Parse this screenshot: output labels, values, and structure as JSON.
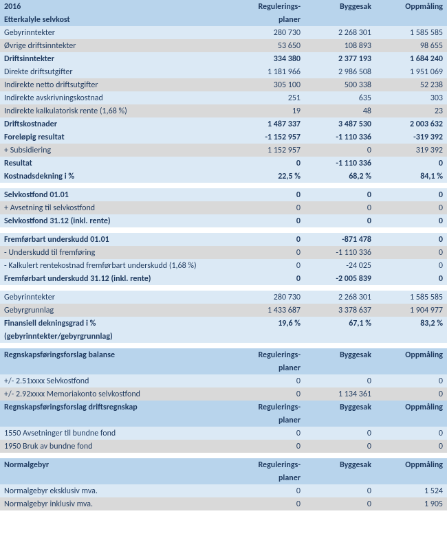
{
  "columns": {
    "c1_a": "2016",
    "c1_b": "Etterkalyle selvkost",
    "c2": "Regulerings-planer",
    "c3": "Byggesak",
    "c4": "Oppmåling"
  },
  "sections": [
    {
      "type": "header",
      "lines": [
        "2016",
        "Etterkalyle selvkost"
      ]
    },
    {
      "type": "rows",
      "rows": [
        {
          "cls": "lt",
          "label": "Gebyrinntekter",
          "v": [
            "280 730",
            "2 268 301",
            "1 585 585"
          ]
        },
        {
          "cls": "gr",
          "label": "Øvrige driftsinntekter",
          "v": [
            "53 650",
            "108 893",
            "98 655"
          ]
        },
        {
          "cls": "lt bold",
          "label": "Driftsinntekter",
          "v": [
            "334 380",
            "2 377 193",
            "1 684 240"
          ]
        },
        {
          "cls": "lt",
          "label": "Direkte driftsutgifter",
          "v": [
            "1 181 966",
            "2 986 508",
            "1 951 069"
          ]
        },
        {
          "cls": "gr",
          "label": "Indirekte netto driftsutgifter",
          "v": [
            "305 100",
            "500 338",
            "52 238"
          ]
        },
        {
          "cls": "lt",
          "label": "Indirekte avskrivningskostnad",
          "v": [
            "251",
            "635",
            "303"
          ]
        },
        {
          "cls": "gr",
          "label": "Indirekte kalkulatorisk rente (1,68 %)",
          "v": [
            "19",
            "48",
            "23"
          ]
        },
        {
          "cls": "lt bold",
          "label": "Driftskostnader",
          "v": [
            "1 487 337",
            "3 487 530",
            "2 003 632"
          ]
        },
        {
          "cls": "lt bold",
          "label": "Foreløpig resultat",
          "v": [
            "-1 152 957",
            "-1 110 336",
            "-319 392"
          ]
        },
        {
          "cls": "gr",
          "label": "+ Subsidiering",
          "v": [
            "1 152 957",
            "0",
            "319 392"
          ]
        },
        {
          "cls": "lt bold",
          "label": "Resultat",
          "v": [
            "0",
            "-1 110 336",
            "0"
          ]
        },
        {
          "cls": "lt bold",
          "label": "Kostnadsdekning i %",
          "v": [
            "22,5 %",
            "68,2 %",
            "84,1 %"
          ]
        }
      ]
    },
    {
      "type": "spacer"
    },
    {
      "type": "rows",
      "rows": [
        {
          "cls": "lt bold",
          "label": "Selvkostfond 01.01",
          "v": [
            "0",
            "0",
            "0"
          ]
        },
        {
          "cls": "gr",
          "label": "+ Avsetning til selvkostfond",
          "v": [
            "0",
            "0",
            "0"
          ]
        },
        {
          "cls": "lt bold",
          "label": "Selvkostfond 31.12 (inkl. rente)",
          "v": [
            "0",
            "0",
            "0"
          ]
        }
      ]
    },
    {
      "type": "spacer"
    },
    {
      "type": "rows",
      "rows": [
        {
          "cls": "lt bold",
          "label": "Fremførbart underskudd 01.01",
          "v": [
            "0",
            "-871 478",
            "0"
          ]
        },
        {
          "cls": "gr",
          "label": "- Underskudd til fremføring",
          "v": [
            "0",
            "-1 110 336",
            "0"
          ]
        },
        {
          "cls": "lt",
          "label": "- Kalkulert rentekostnad fremførbart underskudd (1,68 %)",
          "v": [
            "0",
            "-24 025",
            "0"
          ]
        },
        {
          "cls": "lt bold",
          "label": "Fremførbart underskudd 31.12 (inkl. rente)",
          "v": [
            "0",
            "-2 005 839",
            "0"
          ]
        }
      ]
    },
    {
      "type": "spacer"
    },
    {
      "type": "rows",
      "rows": [
        {
          "cls": "lt",
          "label": "Gebyrinntekter",
          "v": [
            "280 730",
            "2 268 301",
            "1 585 585"
          ]
        },
        {
          "cls": "gr",
          "label": "Gebyrgrunnlag",
          "v": [
            "1 433 687",
            "3 378 637",
            "1 904 977"
          ]
        },
        {
          "cls": "lt bold",
          "label": "Finansiell dekningsgrad i %\n(gebyrinntekter/gebyrgrunnlag)",
          "v": [
            "19,6 %",
            "67,1 %",
            "83,2 %"
          ],
          "tall": true
        }
      ]
    },
    {
      "type": "spacer"
    },
    {
      "type": "subheader",
      "label": "Regnskapsføringsforslag balanse"
    },
    {
      "type": "rows",
      "rows": [
        {
          "cls": "lt",
          "label": "+/- 2.51xxxx Selvkostfond",
          "v": [
            "0",
            "0",
            "0"
          ]
        },
        {
          "cls": "gr",
          "label": "+/- 2.92xxxx Memoriakonto selvkostfond",
          "v": [
            "0",
            "1 134 361",
            "0"
          ]
        }
      ]
    },
    {
      "type": "subheader",
      "label": "Regnskapsføringsforslag driftsregnskap"
    },
    {
      "type": "rows",
      "rows": [
        {
          "cls": "lt",
          "label": "1550 Avsetninger til bundne fond",
          "v": [
            "0",
            "0",
            "0"
          ]
        },
        {
          "cls": "gr",
          "label": "1950 Bruk av bundne fond",
          "v": [
            "0",
            "0",
            "0"
          ]
        }
      ]
    },
    {
      "type": "spacer"
    },
    {
      "type": "subheader",
      "label": "Normalgebyr"
    },
    {
      "type": "rows",
      "rows": [
        {
          "cls": "lt",
          "label": "Normalgebyr eksklusiv mva.",
          "v": [
            "0",
            "0",
            "1 524"
          ]
        },
        {
          "cls": "gr",
          "label": "Normalgebyr inklusiv mva.",
          "v": [
            "0",
            "0",
            "1 905"
          ]
        }
      ]
    }
  ]
}
